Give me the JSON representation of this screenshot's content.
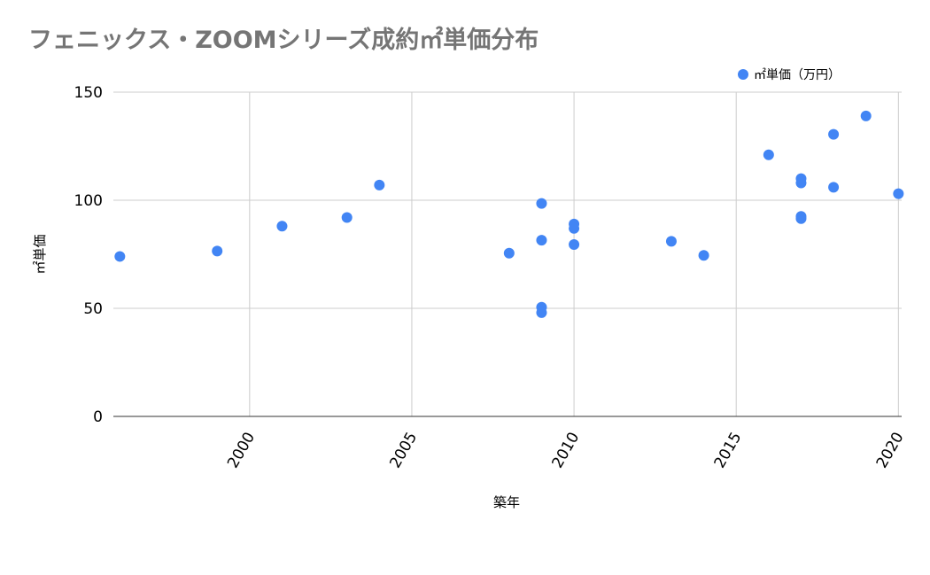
{
  "chart_data": {
    "type": "scatter",
    "title": "フェニックス・ZOOMシリーズ成約㎡単価分布",
    "xlabel": "築年",
    "ylabel": "㎡単価",
    "legend_position": "top-right",
    "grid": true,
    "xlim": [
      1995.8,
      2020.1
    ],
    "ylim": [
      0,
      150
    ],
    "x_ticks": [
      2000,
      2005,
      2010,
      2015,
      2020
    ],
    "y_ticks": [
      0,
      50,
      100,
      150
    ],
    "series": [
      {
        "name": "㎡単価（万円）",
        "color": "#4285f4",
        "points": [
          {
            "x": 1996,
            "y": 74
          },
          {
            "x": 1999,
            "y": 76.5
          },
          {
            "x": 2001,
            "y": 88
          },
          {
            "x": 2003,
            "y": 92
          },
          {
            "x": 2004,
            "y": 107
          },
          {
            "x": 2008,
            "y": 75.5
          },
          {
            "x": 2009,
            "y": 98.5
          },
          {
            "x": 2009,
            "y": 81.5
          },
          {
            "x": 2009,
            "y": 50.5
          },
          {
            "x": 2009,
            "y": 48
          },
          {
            "x": 2010,
            "y": 89
          },
          {
            "x": 2010,
            "y": 87
          },
          {
            "x": 2010,
            "y": 79.5
          },
          {
            "x": 2013,
            "y": 81
          },
          {
            "x": 2014,
            "y": 74.5
          },
          {
            "x": 2016,
            "y": 121
          },
          {
            "x": 2017,
            "y": 110
          },
          {
            "x": 2017,
            "y": 108
          },
          {
            "x": 2017,
            "y": 92.5
          },
          {
            "x": 2017,
            "y": 91.5
          },
          {
            "x": 2018,
            "y": 130.5
          },
          {
            "x": 2018,
            "y": 106
          },
          {
            "x": 2019,
            "y": 139
          },
          {
            "x": 2020,
            "y": 103
          }
        ]
      }
    ]
  }
}
